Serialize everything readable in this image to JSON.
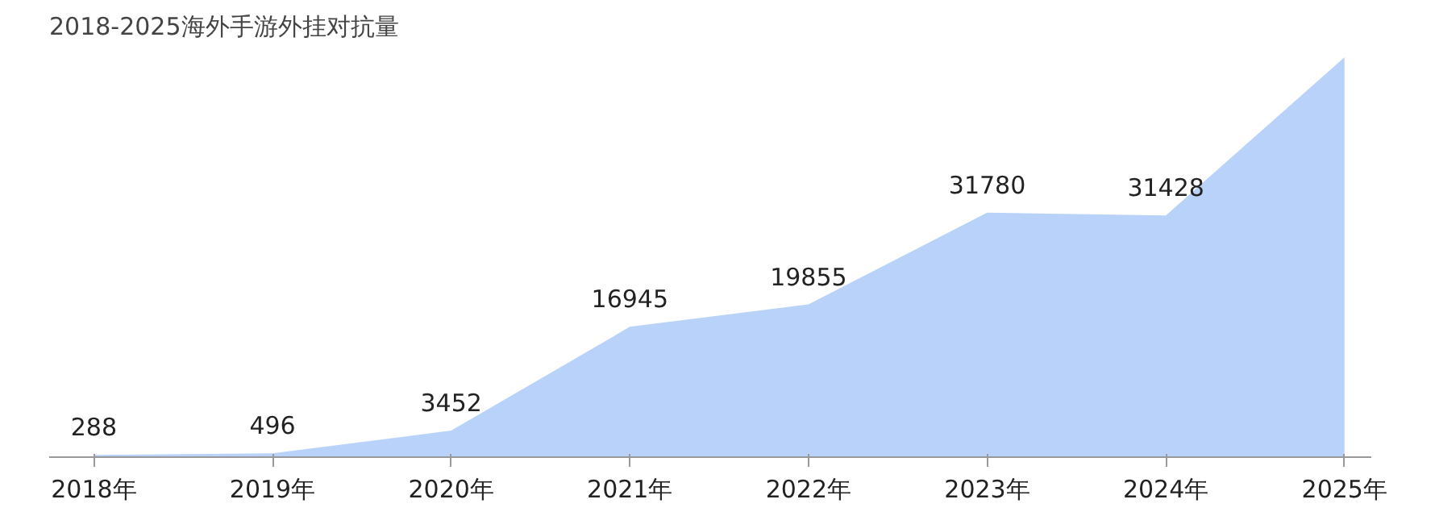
{
  "chart_data": {
    "type": "area",
    "title": "2018-2025海外手游外挂对抗量",
    "categories": [
      "2018年",
      "2019年",
      "2020年",
      "2021年",
      "2022年",
      "2023年",
      "2024年",
      "2025年"
    ],
    "values": [
      288,
      496,
      3452,
      16945,
      19855,
      31780,
      31428,
      52000
    ],
    "value_labels": [
      "288",
      "496",
      "3452",
      "16945",
      "19855",
      "31780",
      "31428",
      null
    ],
    "color": "#4f8ef0"
  }
}
